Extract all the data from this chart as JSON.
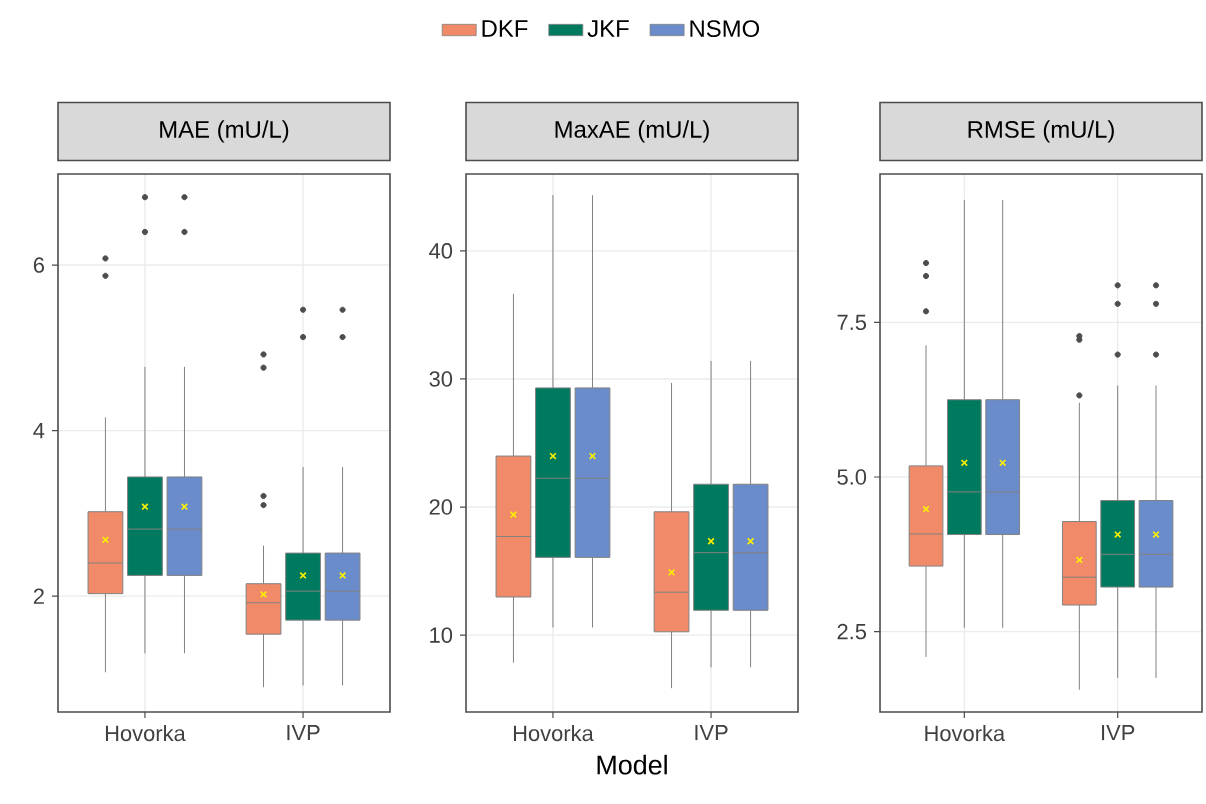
{
  "chart_data": [
    {
      "type": "box",
      "title": "MAE (mU/L)",
      "categories": [
        "Hovorka",
        "IVP"
      ],
      "ylim": [
        0.6,
        7.1
      ],
      "yticks": [
        2,
        4,
        6
      ],
      "grid": true,
      "legend": "top",
      "series": [
        {
          "name": "DKF",
          "color": "#f08a68",
          "boxes": [
            {
              "low": 1.08,
              "q1": 2.03,
              "median": 2.4,
              "q3": 3.02,
              "high": 4.16,
              "mean": 2.68,
              "outliers": [
                5.87,
                6.08
              ]
            },
            {
              "low": 0.9,
              "q1": 1.54,
              "median": 1.92,
              "q3": 2.15,
              "high": 2.61,
              "mean": 2.02,
              "outliers": [
                3.1,
                3.21,
                4.76,
                4.92
              ]
            }
          ]
        },
        {
          "name": "JKF",
          "color": "#007a5e",
          "boxes": [
            {
              "low": 1.31,
              "q1": 2.25,
              "median": 2.81,
              "q3": 3.44,
              "high": 4.77,
              "mean": 3.08,
              "outliers": [
                6.4,
                6.82
              ]
            },
            {
              "low": 0.92,
              "q1": 1.71,
              "median": 2.06,
              "q3": 2.52,
              "high": 3.56,
              "mean": 2.25,
              "outliers": [
                5.13,
                5.46
              ]
            }
          ]
        },
        {
          "name": "NSMO",
          "color": "#6a8cca",
          "boxes": [
            {
              "low": 1.31,
              "q1": 2.25,
              "median": 2.81,
              "q3": 3.44,
              "high": 4.77,
              "mean": 3.08,
              "outliers": [
                6.4,
                6.82
              ]
            },
            {
              "low": 0.92,
              "q1": 1.71,
              "median": 2.06,
              "q3": 2.52,
              "high": 3.56,
              "mean": 2.25,
              "outliers": [
                5.13,
                5.46
              ]
            }
          ]
        }
      ]
    },
    {
      "type": "box",
      "title": "MaxAE (mU/L)",
      "xlabel": "Model",
      "categories": [
        "Hovorka",
        "IVP"
      ],
      "ylim": [
        4,
        46
      ],
      "yticks": [
        10,
        20,
        30,
        40
      ],
      "grid": true,
      "series": [
        {
          "color": "#f08a68",
          "boxes": [
            {
              "low": 7.85,
              "q1": 12.98,
              "median": 17.7,
              "q3": 23.98,
              "high": 36.65,
              "mean": 19.4
            },
            {
              "low": 5.86,
              "q1": 10.26,
              "median": 13.35,
              "q3": 19.63,
              "high": 29.69,
              "mean": 14.9
            }
          ]
        },
        {
          "color": "#007a5e",
          "boxes": [
            {
              "low": 10.6,
              "q1": 16.07,
              "median": 22.25,
              "q3": 29.3,
              "high": 44.35,
              "mean": 23.98
            },
            {
              "low": 7.49,
              "q1": 11.94,
              "median": 16.44,
              "q3": 21.78,
              "high": 31.41,
              "mean": 17.33
            }
          ]
        },
        {
          "color": "#6a8cca",
          "boxes": [
            {
              "low": 10.6,
              "q1": 16.07,
              "median": 22.25,
              "q3": 29.3,
              "high": 44.35,
              "mean": 23.98
            },
            {
              "low": 7.49,
              "q1": 11.94,
              "median": 16.44,
              "q3": 21.78,
              "high": 31.41,
              "mean": 17.33
            }
          ]
        }
      ]
    },
    {
      "type": "box",
      "title": "RMSE (mU/L)",
      "categories": [
        "Hovorka",
        "IVP"
      ],
      "ylim": [
        1.2,
        9.9
      ],
      "yticks": [
        2.5,
        {
          "value": 5,
          "label": "5.0"
        },
        7.5
      ],
      "grid": true,
      "series": [
        {
          "color": "#f08a68",
          "boxes": [
            {
              "low": 2.09,
              "q1": 3.56,
              "median": 4.08,
              "q3": 5.18,
              "high": 7.13,
              "mean": 4.48,
              "outliers": [
                7.68,
                8.25,
                8.46
              ]
            },
            {
              "low": 1.56,
              "q1": 2.93,
              "median": 3.38,
              "q3": 4.28,
              "high": 6.2,
              "mean": 3.66,
              "outliers": [
                6.32,
                7.22,
                7.28
              ]
            }
          ]
        },
        {
          "color": "#007a5e",
          "boxes": [
            {
              "low": 2.56,
              "q1": 4.07,
              "median": 4.76,
              "q3": 6.25,
              "high": 9.48,
              "mean": 5.23
            },
            {
              "low": 1.75,
              "q1": 3.22,
              "median": 3.75,
              "q3": 4.62,
              "high": 6.48,
              "mean": 4.07,
              "outliers": [
                6.98,
                7.8,
                8.1
              ]
            }
          ]
        },
        {
          "color": "#6a8cca",
          "boxes": [
            {
              "low": 2.56,
              "q1": 4.07,
              "median": 4.76,
              "q3": 6.25,
              "high": 9.48,
              "mean": 5.23
            },
            {
              "low": 1.75,
              "q1": 3.22,
              "median": 3.75,
              "q3": 4.62,
              "high": 6.48,
              "mean": 4.07,
              "outliers": [
                6.98,
                7.8,
                8.1
              ]
            }
          ]
        }
      ]
    }
  ]
}
